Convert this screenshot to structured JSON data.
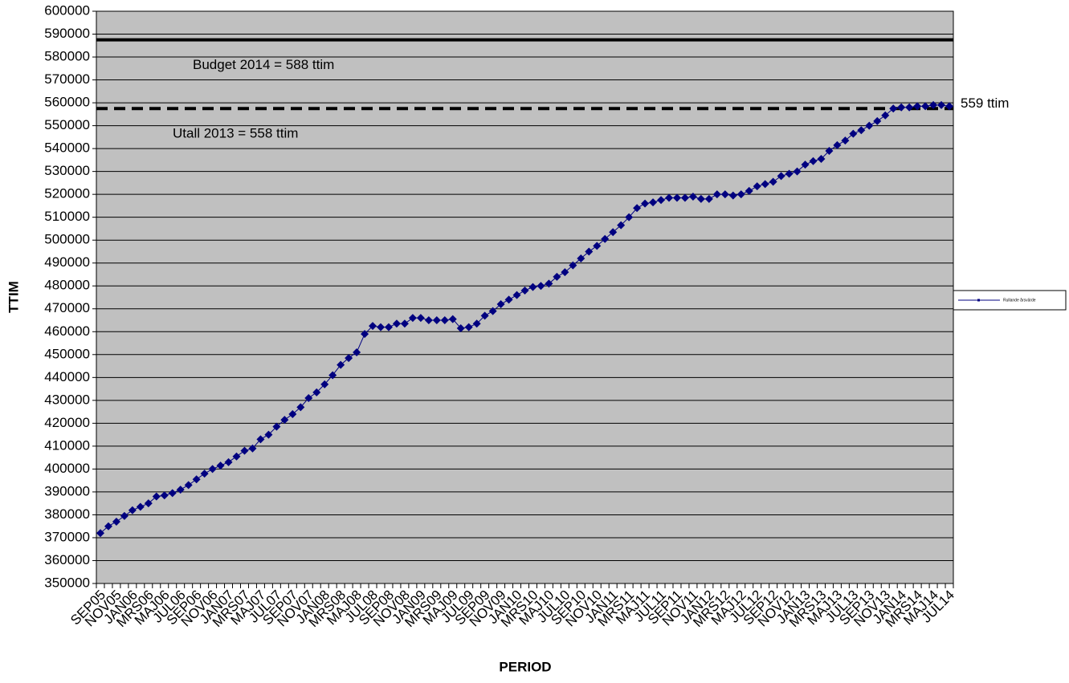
{
  "chart_data": {
    "type": "line",
    "y_label": "TTIM",
    "x_label": "PERIOD",
    "categories": [
      "SEP05",
      null,
      "NOV05",
      null,
      "JAN06",
      null,
      "MRS06",
      null,
      "MAJ06",
      null,
      "JUL06",
      null,
      "SEP06",
      null,
      "NOV06",
      null,
      "JAN07",
      null,
      "MRS07",
      null,
      "MAJ07",
      null,
      "JUL07",
      null,
      "SEP07",
      null,
      "NOV07",
      null,
      "JAN08",
      null,
      "MRS08",
      null,
      "MAJ08",
      null,
      "JUL08",
      null,
      "SEP08",
      null,
      "NOV08",
      null,
      "JAN09",
      null,
      "MRS09",
      null,
      "MAJ09",
      null,
      "JUL09",
      null,
      "SEP09",
      null,
      "NOV09",
      null,
      "JAN10",
      null,
      "MRS10",
      null,
      "MAJ10",
      null,
      "JUL10",
      null,
      "SEP10",
      null,
      "NOV10",
      null,
      "JAN11",
      null,
      "MRS11",
      null,
      "MAJ11",
      null,
      "JUL11",
      null,
      "SEP11",
      null,
      "NOV11",
      null,
      "JAN12",
      null,
      "MRS12",
      null,
      "MAJ12",
      null,
      "JUL12",
      null,
      "SEP12",
      null,
      "NOV12",
      null,
      "JAN13",
      null,
      "MRS13",
      null,
      "MAJ13",
      null,
      "JUL13",
      null,
      "SEP13",
      null,
      "NOV13",
      null,
      "JAN14",
      null,
      "MRS14",
      null,
      "MAJ14",
      null,
      "JUL14"
    ],
    "series": [
      {
        "name": "Rullande årsvärde",
        "color": "#000080",
        "values": [
          372000,
          375000,
          377000,
          379500,
          382000,
          383500,
          385000,
          388000,
          388500,
          389500,
          391000,
          393000,
          395500,
          398000,
          400000,
          401500,
          403000,
          405500,
          408000,
          409000,
          413000,
          415000,
          418500,
          421500,
          424000,
          427000,
          431000,
          433500,
          437000,
          441000,
          445500,
          448500,
          451000,
          459000,
          462500,
          462000,
          462000,
          463500,
          463500,
          466000,
          466000,
          465000,
          465000,
          465000,
          465500,
          461500,
          462000,
          463500,
          467000,
          469000,
          472000,
          474000,
          476000,
          478000,
          479500,
          480000,
          481000,
          484000,
          486000,
          489000,
          492000,
          495000,
          497500,
          500500,
          503500,
          506500,
          510000,
          514000,
          516000,
          516500,
          517500,
          518500,
          518500,
          518500,
          519000,
          518000,
          518000,
          520000,
          520000,
          519500,
          520000,
          521500,
          523500,
          524500,
          525500,
          528000,
          529000,
          530000,
          533000,
          534500,
          535500,
          539000,
          541500,
          543500,
          546500,
          548000,
          550000,
          552000,
          554500,
          557500,
          558000,
          558000,
          558500,
          558500,
          559000,
          559000,
          558500
        ]
      }
    ],
    "reference_lines": [
      {
        "value": 587500,
        "style": "solid",
        "label": "Budget  2014 = 588 ttim"
      },
      {
        "value": 557500,
        "style": "dashed",
        "label": "Utall  2013 = 558  ttim"
      }
    ],
    "end_annotation": "559  ttim",
    "ylim": [
      350000,
      600000
    ],
    "yticks": [
      350000,
      360000,
      370000,
      380000,
      390000,
      400000,
      410000,
      420000,
      430000,
      440000,
      450000,
      460000,
      470000,
      480000,
      490000,
      500000,
      510000,
      520000,
      530000,
      540000,
      550000,
      560000,
      570000,
      580000,
      590000,
      600000
    ],
    "grid": true,
    "background": "#c0c0c0",
    "legend": "right"
  }
}
